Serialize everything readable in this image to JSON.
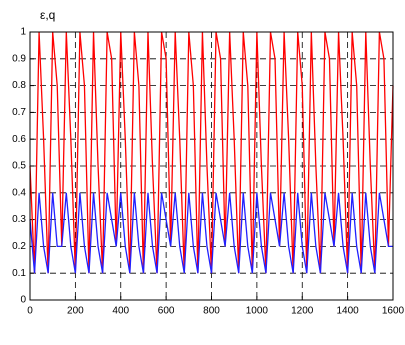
{
  "chart_data": {
    "type": "line",
    "ylabel": "ε,q",
    "x": [
      0,
      20,
      40,
      60,
      80,
      100,
      120,
      140,
      160,
      180,
      200,
      220,
      240,
      260,
      280,
      300,
      320,
      340,
      360,
      380,
      400,
      420,
      440,
      460,
      480,
      500,
      520,
      540,
      560,
      580,
      600,
      620,
      640,
      660,
      680,
      700,
      720,
      740,
      760,
      780,
      800,
      820,
      840,
      860,
      880,
      900,
      920,
      940,
      960,
      980,
      1000,
      1020,
      1040,
      1060,
      1080,
      1100,
      1120,
      1140,
      1160,
      1180,
      1200,
      1220,
      1240,
      1260,
      1280,
      1300,
      1320,
      1340,
      1360,
      1380,
      1400,
      1420,
      1440,
      1460,
      1480,
      1500,
      1520,
      1540,
      1560,
      1580,
      1600
    ],
    "series": [
      {
        "color": "#ff0000",
        "values": [
          0.5,
          0.1,
          1,
          0.6,
          0.1,
          1,
          0.8,
          0.2,
          1,
          0.6,
          0.1,
          1,
          0.8,
          0.1,
          1,
          0.5,
          0.1,
          1,
          0.9,
          0.2,
          1,
          0.6,
          0.1,
          1,
          0.8,
          0.1,
          1,
          0.5,
          0.1,
          1,
          0.9,
          0.2,
          1,
          0.6,
          0.1,
          1,
          0.8,
          0.1,
          1,
          0.5,
          0.1,
          1,
          0.9,
          0.2,
          1,
          0.6,
          0.1,
          1,
          0.8,
          0.1,
          1,
          0.5,
          0.1,
          1,
          0.9,
          0.2,
          1,
          0.6,
          0.1,
          1,
          0.8,
          0.1,
          1,
          0.5,
          0.1,
          1,
          0.9,
          0.2,
          1,
          0.6,
          0.1,
          1,
          0.8,
          0.1,
          1,
          0.5,
          0.1,
          1,
          0.9,
          0.2,
          0.8
        ]
      },
      {
        "color": "#2020ff",
        "values": [
          0.3,
          0.1,
          0.4,
          0.2,
          0.1,
          0.4,
          0.2,
          0.2,
          0.4,
          0.2,
          0.1,
          0.4,
          0.2,
          0.1,
          0.4,
          0.2,
          0.1,
          0.4,
          0.3,
          0.2,
          0.4,
          0.2,
          0.1,
          0.4,
          0.2,
          0.1,
          0.4,
          0.2,
          0.1,
          0.4,
          0.3,
          0.2,
          0.4,
          0.2,
          0.1,
          0.4,
          0.2,
          0.1,
          0.4,
          0.2,
          0.1,
          0.4,
          0.3,
          0.2,
          0.4,
          0.2,
          0.1,
          0.4,
          0.2,
          0.1,
          0.4,
          0.2,
          0.1,
          0.4,
          0.3,
          0.2,
          0.4,
          0.2,
          0.1,
          0.4,
          0.2,
          0.1,
          0.4,
          0.2,
          0.1,
          0.4,
          0.3,
          0.2,
          0.4,
          0.2,
          0.1,
          0.4,
          0.2,
          0.1,
          0.4,
          0.2,
          0.1,
          0.4,
          0.3,
          0.2,
          0.2
        ]
      }
    ],
    "xlim": [
      0,
      1600
    ],
    "xticks": [
      0,
      200,
      400,
      600,
      800,
      1000,
      1200,
      1400,
      1600
    ],
    "ylim": [
      0,
      1
    ],
    "yticks": [
      0,
      0.1,
      0.2,
      0.3,
      0.4,
      0.5,
      0.6,
      0.7,
      0.8,
      0.9,
      1
    ],
    "grid": true
  }
}
